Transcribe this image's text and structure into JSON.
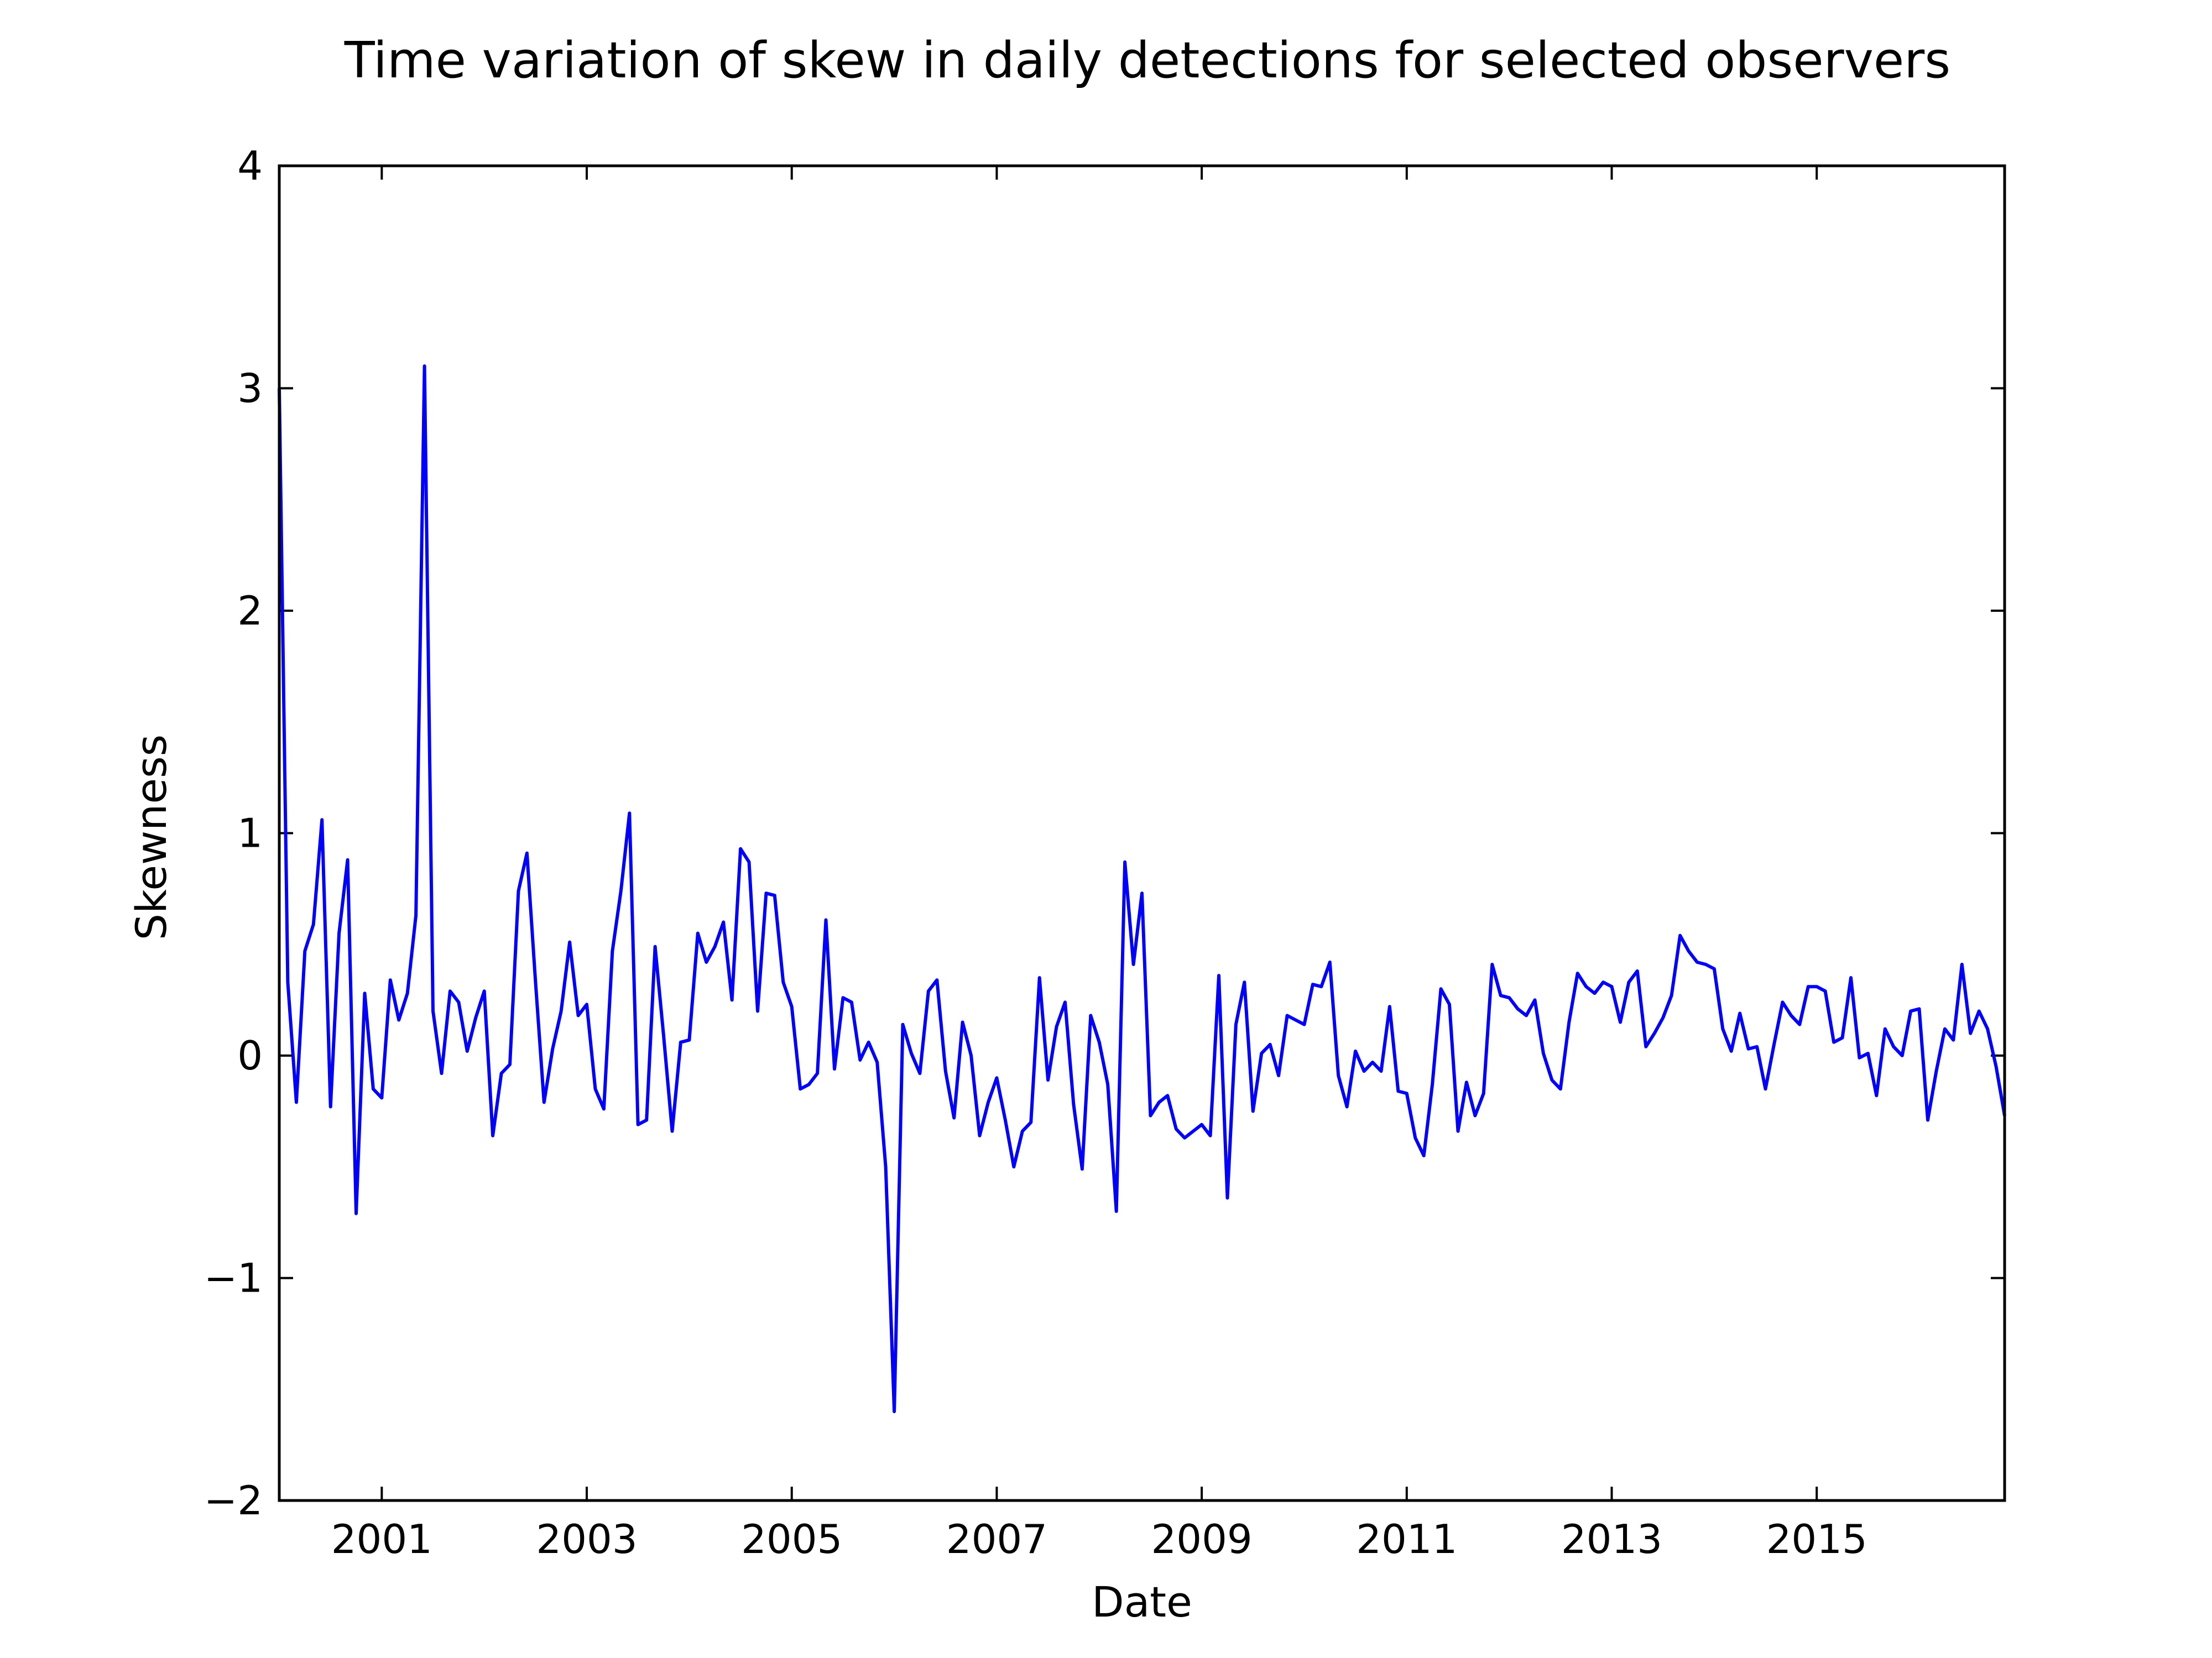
{
  "chart_data": {
    "type": "line",
    "title": "Time variation of skew in daily detections for selected observers",
    "xlabel": "Date",
    "ylabel": "Skewness",
    "xlim": [
      "2000-01",
      "2016-11"
    ],
    "ylim": [
      -2,
      4
    ],
    "grid": false,
    "legend": "none",
    "x_ticks": [
      "2001",
      "2003",
      "2005",
      "2007",
      "2009",
      "2011",
      "2013",
      "2015"
    ],
    "y_ticks": [
      "−2",
      "−1",
      "0",
      "1",
      "2",
      "3",
      "4"
    ],
    "series": [
      {
        "color": "#0000ff",
        "x": [
          "2000-01",
          "2000-02",
          "2000-03",
          "2000-04",
          "2000-05",
          "2000-06",
          "2000-07",
          "2000-08",
          "2000-09",
          "2000-10",
          "2000-11",
          "2000-12",
          "2001-01",
          "2001-02",
          "2001-03",
          "2001-04",
          "2001-05",
          "2001-06",
          "2001-07",
          "2001-08",
          "2001-09",
          "2001-10",
          "2001-11",
          "2001-12",
          "2002-01",
          "2002-02",
          "2002-03",
          "2002-04",
          "2002-05",
          "2002-06",
          "2002-07",
          "2002-08",
          "2002-09",
          "2002-10",
          "2002-11",
          "2002-12",
          "2003-01",
          "2003-02",
          "2003-03",
          "2003-04",
          "2003-05",
          "2003-06",
          "2003-07",
          "2003-08",
          "2003-09",
          "2003-10",
          "2003-11",
          "2003-12",
          "2004-01",
          "2004-02",
          "2004-03",
          "2004-04",
          "2004-05",
          "2004-06",
          "2004-07",
          "2004-08",
          "2004-09",
          "2004-10",
          "2004-11",
          "2004-12",
          "2005-01",
          "2005-02",
          "2005-03",
          "2005-04",
          "2005-05",
          "2005-06",
          "2005-07",
          "2005-08",
          "2005-09",
          "2005-10",
          "2005-11",
          "2005-12",
          "2006-01",
          "2006-02",
          "2006-03",
          "2006-04",
          "2006-05",
          "2006-06",
          "2006-07",
          "2006-08",
          "2006-09",
          "2006-10",
          "2006-11",
          "2006-12",
          "2007-01",
          "2007-02",
          "2007-03",
          "2007-04",
          "2007-05",
          "2007-06",
          "2007-07",
          "2007-08",
          "2007-09",
          "2007-10",
          "2007-11",
          "2007-12",
          "2008-01",
          "2008-02",
          "2008-03",
          "2008-04",
          "2008-05",
          "2008-06",
          "2008-07",
          "2008-08",
          "2008-09",
          "2008-10",
          "2008-11",
          "2008-12",
          "2009-01",
          "2009-02",
          "2009-03",
          "2009-04",
          "2009-05",
          "2009-06",
          "2009-07",
          "2009-08",
          "2009-09",
          "2009-10",
          "2009-11",
          "2009-12",
          "2010-01",
          "2010-02",
          "2010-03",
          "2010-04",
          "2010-05",
          "2010-06",
          "2010-07",
          "2010-08",
          "2010-09",
          "2010-10",
          "2010-11",
          "2010-12",
          "2011-01",
          "2011-02",
          "2011-03",
          "2011-04",
          "2011-05",
          "2011-06",
          "2011-07",
          "2011-08",
          "2011-09",
          "2011-10",
          "2011-11",
          "2011-12",
          "2012-01",
          "2012-02",
          "2012-03",
          "2012-04",
          "2012-05",
          "2012-06",
          "2012-07",
          "2012-08",
          "2012-09",
          "2012-10",
          "2012-11",
          "2012-12",
          "2013-01",
          "2013-02",
          "2013-03",
          "2013-04",
          "2013-05",
          "2013-06",
          "2013-07",
          "2013-08",
          "2013-09",
          "2013-10",
          "2013-11",
          "2013-12",
          "2014-01",
          "2014-02",
          "2014-03",
          "2014-04",
          "2014-05",
          "2014-06",
          "2014-07",
          "2014-08",
          "2014-09",
          "2014-10",
          "2014-11",
          "2014-12",
          "2015-01",
          "2015-02",
          "2015-03",
          "2015-04",
          "2015-05",
          "2015-06",
          "2015-07",
          "2015-08",
          "2015-09",
          "2015-10",
          "2015-11",
          "2015-12",
          "2016-01",
          "2016-02",
          "2016-03",
          "2016-04",
          "2016-05",
          "2016-06",
          "2016-07",
          "2016-08",
          "2016-09",
          "2016-10",
          "2016-11"
        ],
        "y": [
          3.0,
          0.33,
          -0.21,
          0.47,
          0.59,
          1.06,
          -0.23,
          0.55,
          0.88,
          -0.71,
          0.28,
          -0.15,
          -0.19,
          0.34,
          0.16,
          0.28,
          0.63,
          3.1,
          0.2,
          -0.08,
          0.29,
          0.24,
          0.02,
          0.17,
          0.29,
          -0.36,
          -0.08,
          -0.04,
          0.74,
          0.91,
          0.33,
          -0.21,
          0.03,
          0.2,
          0.51,
          0.18,
          0.23,
          -0.15,
          -0.24,
          0.47,
          0.74,
          1.09,
          -0.31,
          -0.29,
          0.49,
          0.09,
          -0.34,
          0.06,
          0.07,
          0.55,
          0.42,
          0.49,
          0.6,
          0.25,
          0.93,
          0.87,
          0.2,
          0.73,
          0.72,
          0.33,
          0.22,
          -0.15,
          -0.13,
          -0.08,
          0.61,
          -0.06,
          0.26,
          0.24,
          -0.02,
          0.06,
          -0.03,
          -0.5,
          -1.6,
          0.14,
          0.01,
          -0.08,
          0.29,
          0.34,
          -0.07,
          -0.28,
          0.15,
          0.0,
          -0.36,
          -0.21,
          -0.1,
          -0.29,
          -0.5,
          -0.34,
          -0.3,
          0.35,
          -0.11,
          0.13,
          0.24,
          -0.22,
          -0.51,
          0.18,
          0.06,
          -0.13,
          -0.7,
          0.87,
          0.41,
          0.73,
          -0.27,
          -0.21,
          -0.18,
          -0.33,
          -0.37,
          -0.34,
          -0.31,
          -0.36,
          0.36,
          -0.64,
          0.14,
          0.33,
          -0.25,
          0.01,
          0.05,
          -0.09,
          0.18,
          0.16,
          0.14,
          0.32,
          0.31,
          0.42,
          -0.09,
          -0.23,
          0.02,
          -0.07,
          -0.03,
          -0.07,
          0.22,
          -0.16,
          -0.17,
          -0.37,
          -0.45,
          -0.13,
          0.3,
          0.23,
          -0.34,
          -0.12,
          -0.27,
          -0.17,
          0.41,
          0.27,
          0.26,
          0.21,
          0.18,
          0.25,
          0.01,
          -0.11,
          -0.15,
          0.15,
          0.37,
          0.31,
          0.28,
          0.33,
          0.31,
          0.15,
          0.33,
          0.38,
          0.04,
          0.1,
          0.17,
          0.27,
          0.54,
          0.47,
          0.42,
          0.41,
          0.39,
          0.12,
          0.02,
          0.19,
          0.03,
          0.04,
          -0.15,
          0.05,
          0.24,
          0.18,
          0.14,
          0.31,
          0.31,
          0.29,
          0.06,
          0.08,
          0.35,
          -0.01,
          0.01,
          -0.18,
          0.12,
          0.04,
          0.0,
          0.2,
          0.21,
          -0.29,
          -0.07,
          0.12,
          0.07,
          0.41,
          0.1,
          0.2,
          0.12,
          -0.05,
          -0.27
        ]
      }
    ]
  }
}
